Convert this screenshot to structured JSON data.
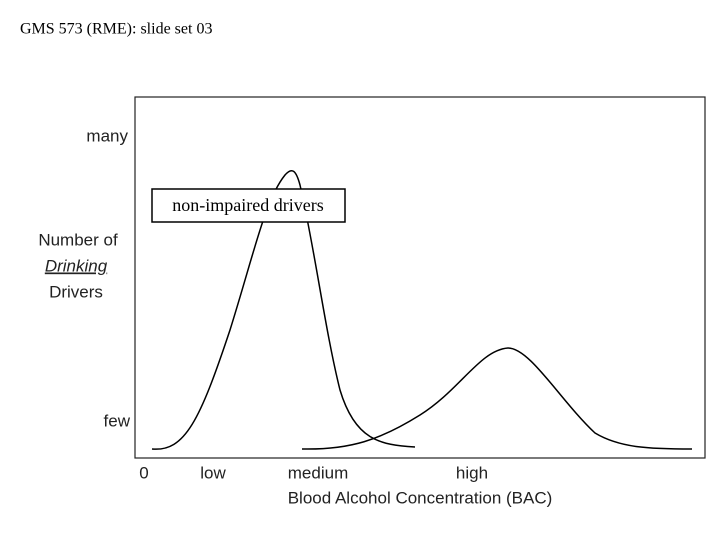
{
  "header": {
    "title": "GMS 573 (RME): slide set 03"
  },
  "figure": {
    "y_labels": {
      "top": "many",
      "bottom": "few"
    },
    "y_title": [
      "Number of",
      "Drinking",
      "Drivers"
    ],
    "x_labels": [
      "0",
      "low",
      "medium",
      "high"
    ],
    "x_title": "Blood Alcohol Concentration (BAC)",
    "annotation": "non-impaired drivers"
  }
}
